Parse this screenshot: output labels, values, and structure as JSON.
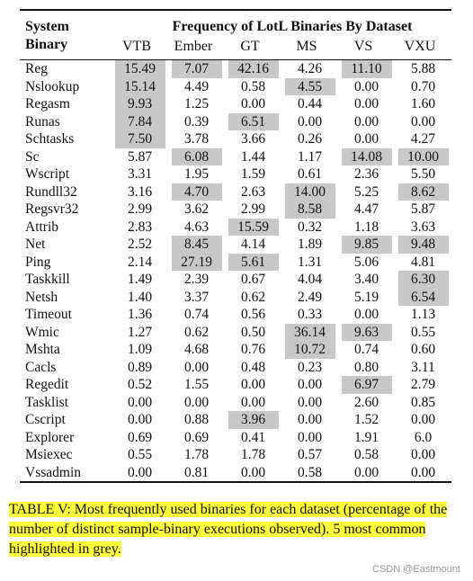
{
  "header": {
    "system_line1": "System",
    "system_line2": "Binary",
    "group_title": "Frequency of LotL Binaries By Dataset",
    "columns": [
      "VTB",
      "Ember",
      "GT",
      "MS",
      "VS",
      "VXU"
    ]
  },
  "rows": [
    {
      "name": "Reg",
      "values": [
        "15.49",
        "7.07",
        "42.16",
        "4.26",
        "11.10",
        "5.88"
      ],
      "highlight": [
        true,
        true,
        true,
        false,
        true,
        false
      ]
    },
    {
      "name": "Nslookup",
      "values": [
        "15.14",
        "4.49",
        "0.58",
        "4.55",
        "0.00",
        "0.70"
      ],
      "highlight": [
        true,
        false,
        false,
        true,
        false,
        false
      ]
    },
    {
      "name": "Regasm",
      "values": [
        "9.93",
        "1.25",
        "0.00",
        "0.44",
        "0.00",
        "1.60"
      ],
      "highlight": [
        true,
        false,
        false,
        false,
        false,
        false
      ]
    },
    {
      "name": "Runas",
      "values": [
        "7.84",
        "0.39",
        "6.51",
        "0.00",
        "0.00",
        "0.00"
      ],
      "highlight": [
        true,
        false,
        true,
        false,
        false,
        false
      ]
    },
    {
      "name": "Schtasks",
      "values": [
        "7.50",
        "3.78",
        "3.66",
        "0.26",
        "0.00",
        "4.27"
      ],
      "highlight": [
        true,
        false,
        false,
        false,
        false,
        false
      ]
    },
    {
      "name": "Sc",
      "values": [
        "5.87",
        "6.08",
        "1.44",
        "1.17",
        "14.08",
        "10.00"
      ],
      "highlight": [
        false,
        true,
        false,
        false,
        true,
        true
      ]
    },
    {
      "name": "Wscript",
      "values": [
        "3.31",
        "1.95",
        "1.59",
        "0.61",
        "2.36",
        "5.50"
      ],
      "highlight": [
        false,
        false,
        false,
        false,
        false,
        false
      ]
    },
    {
      "name": "Rundll32",
      "values": [
        "3.16",
        "4.70",
        "2.63",
        "14.00",
        "5.25",
        "8.62"
      ],
      "highlight": [
        false,
        true,
        false,
        true,
        false,
        true
      ]
    },
    {
      "name": "Regsvr32",
      "values": [
        "2.99",
        "3.62",
        "2.99",
        "8.58",
        "4.47",
        "5.87"
      ],
      "highlight": [
        false,
        false,
        false,
        true,
        false,
        false
      ]
    },
    {
      "name": "Attrib",
      "values": [
        "2.83",
        "4.63",
        "15.59",
        "0.32",
        "1.18",
        "3.63"
      ],
      "highlight": [
        false,
        false,
        true,
        false,
        false,
        false
      ]
    },
    {
      "name": "Net",
      "values": [
        "2.52",
        "8.45",
        "4.14",
        "1.89",
        "9.85",
        "9.48"
      ],
      "highlight": [
        false,
        true,
        false,
        false,
        true,
        true
      ]
    },
    {
      "name": "Ping",
      "values": [
        "2.14",
        "27.19",
        "5.61",
        "1.31",
        "5.06",
        "4.81"
      ],
      "highlight": [
        false,
        true,
        true,
        false,
        false,
        false
      ]
    },
    {
      "name": "Taskkill",
      "values": [
        "1.49",
        "2.39",
        "0.67",
        "4.04",
        "3.40",
        "6.30"
      ],
      "highlight": [
        false,
        false,
        false,
        false,
        false,
        true
      ]
    },
    {
      "name": "Netsh",
      "values": [
        "1.40",
        "3.37",
        "0.62",
        "2.49",
        "5.19",
        "6.54"
      ],
      "highlight": [
        false,
        false,
        false,
        false,
        false,
        true
      ]
    },
    {
      "name": "Timeout",
      "values": [
        "1.36",
        "0.74",
        "0.56",
        "0.33",
        "0.00",
        "1.13"
      ],
      "highlight": [
        false,
        false,
        false,
        false,
        false,
        false
      ]
    },
    {
      "name": "Wmic",
      "values": [
        "1.27",
        "0.62",
        "0.50",
        "36.14",
        "9.63",
        "0.55"
      ],
      "highlight": [
        false,
        false,
        false,
        true,
        true,
        false
      ]
    },
    {
      "name": "Mshta",
      "values": [
        "1.09",
        "4.68",
        "0.76",
        "10.72",
        "0.74",
        "0.60"
      ],
      "highlight": [
        false,
        false,
        false,
        true,
        false,
        false
      ]
    },
    {
      "name": "Cacls",
      "values": [
        "0.89",
        "0.00",
        "0.48",
        "0.23",
        "0.80",
        "3.11"
      ],
      "highlight": [
        false,
        false,
        false,
        false,
        false,
        false
      ]
    },
    {
      "name": "Regedit",
      "values": [
        "0.52",
        "1.55",
        "0.00",
        "0.00",
        "6.97",
        "2.79"
      ],
      "highlight": [
        false,
        false,
        false,
        false,
        true,
        false
      ]
    },
    {
      "name": "Tasklist",
      "values": [
        "0.00",
        "0.00",
        "0.00",
        "0.00",
        "2.60",
        "0.85"
      ],
      "highlight": [
        false,
        false,
        false,
        false,
        false,
        false
      ]
    },
    {
      "name": "Cscript",
      "values": [
        "0.00",
        "0.88",
        "3.96",
        "0.00",
        "1.52",
        "0.00"
      ],
      "highlight": [
        false,
        false,
        true,
        false,
        false,
        false
      ]
    },
    {
      "name": "Explorer",
      "values": [
        "0.69",
        "0.69",
        "0.41",
        "0.00",
        "1.91",
        "6.0"
      ],
      "highlight": [
        false,
        false,
        false,
        false,
        false,
        false
      ]
    },
    {
      "name": "Msiexec",
      "values": [
        "0.55",
        "1.78",
        "1.78",
        "0.57",
        "0.58",
        "0.00"
      ],
      "highlight": [
        false,
        false,
        false,
        false,
        false,
        false
      ]
    },
    {
      "name": "Vssadmin",
      "values": [
        "0.00",
        "0.81",
        "0.00",
        "0.58",
        "0.00",
        "0.00"
      ],
      "highlight": [
        false,
        false,
        false,
        false,
        false,
        false
      ]
    }
  ],
  "caption": "TABLE V: Most frequently used binaries for each dataset (percentage of the number of distinct sample-binary executions observed). 5 most common highlighted in grey.",
  "watermark": "CSDN @Eastmount",
  "colors": {
    "highlight": "#c8c8c8",
    "caption_highlight": "#ffff3a"
  }
}
